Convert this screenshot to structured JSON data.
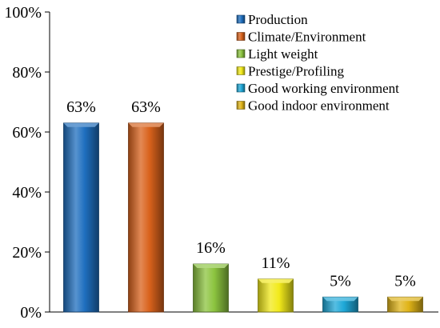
{
  "chart_data": {
    "type": "bar",
    "categories": [
      "Production",
      "Climate/Environment",
      "Light weight",
      "Prestige/Profiling",
      "Good working environment",
      "Good indoor environment"
    ],
    "values": [
      63,
      63,
      16,
      11,
      5,
      5
    ],
    "value_labels": [
      "63%",
      "63%",
      "16%",
      "11%",
      "5%",
      "5%"
    ],
    "colors": [
      "#1f6fbf",
      "#d9621c",
      "#8cc43f",
      "#f2ea1a",
      "#1ea8d8",
      "#e0b417"
    ],
    "yticks": [
      0,
      20,
      40,
      60,
      80,
      100
    ],
    "ytick_labels": [
      "0%",
      "20%",
      "40%",
      "60%",
      "80%",
      "100%"
    ],
    "ylim": [
      0,
      100
    ],
    "grid": false,
    "legend": {
      "placement": "top-right",
      "entries": [
        "Production",
        "Climate/Environment",
        "Light weight",
        "Prestige/Profiling",
        "Good working environment",
        "Good indoor environment"
      ]
    }
  }
}
